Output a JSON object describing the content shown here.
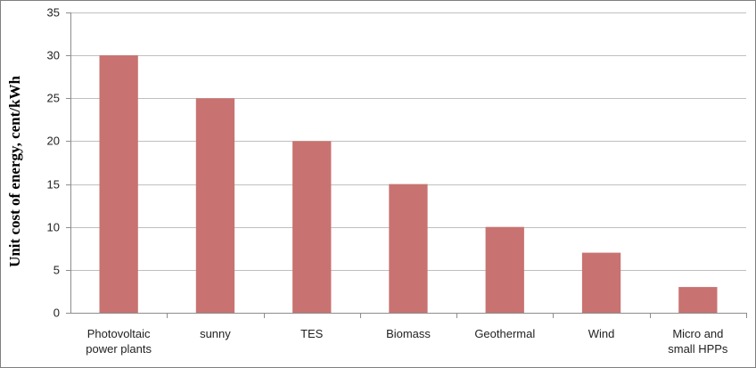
{
  "chart_data": {
    "type": "bar",
    "title": "",
    "xlabel": "",
    "ylabel": "Unit  cost of energy, cent/kWh",
    "categories": [
      [
        "Photovoltaic",
        "power plants"
      ],
      [
        "sunny"
      ],
      [
        "TES"
      ],
      [
        "Biomass"
      ],
      [
        "Geothermal"
      ],
      [
        "Wind"
      ],
      [
        "Micro and",
        "small HPPs"
      ]
    ],
    "values": [
      30,
      25,
      20,
      15,
      10,
      7,
      3
    ],
    "ylim": [
      0,
      35
    ],
    "yticks": [
      0,
      5,
      10,
      15,
      20,
      25,
      30,
      35
    ],
    "grid": true,
    "legend": "none",
    "bar_color": "#C0504D",
    "bar_fill": "#C87371",
    "grid_color": "#BFBFBF",
    "axis_color": "#8C8C8C"
  }
}
